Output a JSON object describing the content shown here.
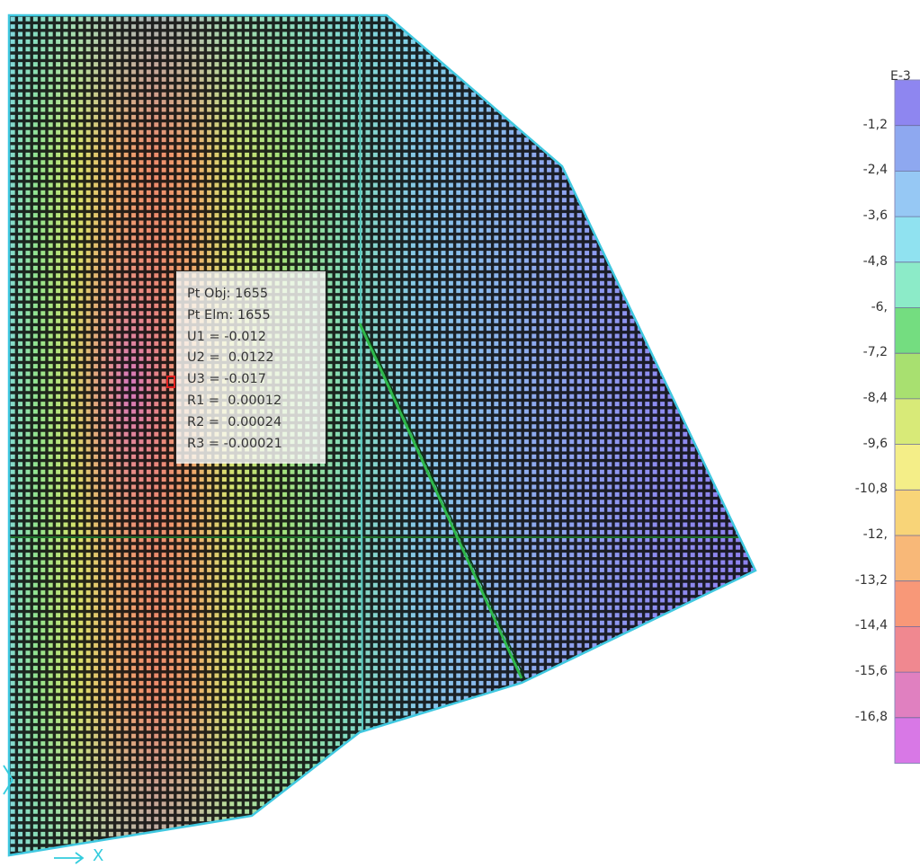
{
  "point_info": {
    "lines": [
      "Pt Obj: 1655",
      "Pt Elm: 1655",
      "U1 = -0.012",
      "U2 =  0.0122",
      "U3 = -0.017",
      "R1 =  0.00012",
      "R2 =  0.00024",
      "R3 = -0.00021"
    ]
  },
  "legend": {
    "units": "E-3",
    "ticks": [
      "-1,2",
      "-2,4",
      "-3,6",
      "-4,8",
      "-6,",
      "-7,2",
      "-8,4",
      "-9,6",
      "-10,8",
      "-12,",
      "-13,2",
      "-14,4",
      "-15,6",
      "-16,8"
    ],
    "colors": [
      "#8e86f0",
      "#8ea8f0",
      "#96c8f4",
      "#90e2f0",
      "#8cebc8",
      "#74dd80",
      "#a8e070",
      "#d8ea78",
      "#f4ee88",
      "#f8d478",
      "#f8b878",
      "#f89878",
      "#f08890",
      "#e080c0",
      "#d878e6"
    ]
  },
  "axis": {
    "x_label": "X"
  },
  "colors": {
    "mesh_line": "#0b0b0b",
    "edge": "#40c8e0",
    "grid_line": "#1e6e2a"
  }
}
